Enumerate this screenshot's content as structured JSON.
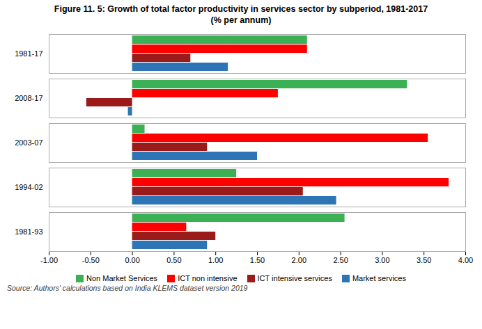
{
  "chart_data": {
    "type": "bar",
    "orientation": "horizontal",
    "title": "Figure 11. 5: Growth of total factor productivity in services sector by subperiod, 1981-2017",
    "subtitle": "(% per annum)",
    "source": "Source: Authors' calculations based on India KLEMS dataset version 2019",
    "categories": [
      "1981-17",
      "2008-17",
      "2003-07",
      "1994-02",
      "1981-93"
    ],
    "series": [
      {
        "name": "Non Market Services",
        "color": "#3CB054",
        "values": [
          2.1,
          3.3,
          0.15,
          1.25,
          2.55
        ]
      },
      {
        "name": "ICT non intensive",
        "color": "#FF0000",
        "values": [
          2.1,
          1.75,
          3.55,
          3.8,
          0.65
        ]
      },
      {
        "name": "ICT intensive services",
        "color": "#9B1B1B",
        "values": [
          0.7,
          -0.55,
          0.9,
          2.05,
          1.0
        ]
      },
      {
        "name": "Market services",
        "color": "#2E75B6",
        "values": [
          1.15,
          -0.05,
          1.5,
          2.45,
          0.9
        ]
      }
    ],
    "xlim": [
      -1.0,
      4.0
    ],
    "xticks": [
      {
        "value": -1.0,
        "label": "-1.00"
      },
      {
        "value": -0.5,
        "label": "-0.50"
      },
      {
        "value": 0.0,
        "label": "0.00"
      },
      {
        "value": 0.5,
        "label": "0.50"
      },
      {
        "value": 1.0,
        "label": "1.00"
      },
      {
        "value": 1.5,
        "label": "1.50"
      },
      {
        "value": 2.0,
        "label": "2.00"
      },
      {
        "value": 2.5,
        "label": "2.50"
      },
      {
        "value": 3.0,
        "label": "3.00"
      },
      {
        "value": 3.5,
        "label": "3.50"
      },
      {
        "value": 4.0,
        "label": "4.00"
      }
    ],
    "grid": false,
    "legend": "bottom"
  }
}
